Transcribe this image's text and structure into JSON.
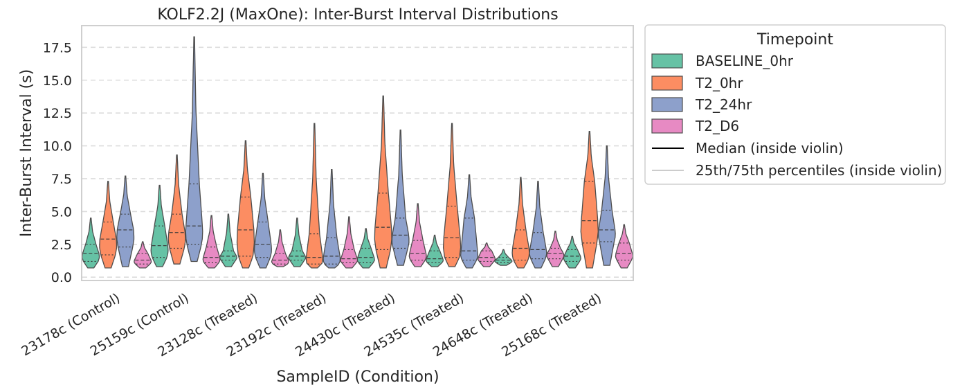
{
  "chart_data": {
    "type": "violin",
    "title": "KOLF2.2J (MaxOne): Inter-Burst Interval Distributions",
    "xlabel": "SampleID (Condition)",
    "ylabel": "Inter-Burst Interval (s)",
    "ylim": [
      -0.2,
      19.1
    ],
    "yticks": [
      "0.0",
      "2.5",
      "5.0",
      "7.5",
      "10.0",
      "12.5",
      "15.0",
      "17.5"
    ],
    "grid": "horizontal dashed",
    "legend_position": "outside right",
    "categories": [
      "23178c (Control)",
      "25159c (Control)",
      "23128c (Treated)",
      "23192c (Treated)",
      "24430c (Treated)",
      "24535c (Treated)",
      "24648c (Treated)",
      "25168c (Treated)"
    ],
    "legend": {
      "title": "Timepoint",
      "entries": [
        "BASELINE_0hr",
        "T2_0hr",
        "T2_24hr",
        "T2_D6",
        "Median (inside violin)",
        "25th/75th percentiles (inside violin)"
      ]
    },
    "series": [
      {
        "name": "BASELINE_0hr",
        "color": "#66c2a5",
        "stats": [
          {
            "min": 0.7,
            "q1": 1.2,
            "median": 1.8,
            "q3": 2.5,
            "max": 4.5
          },
          {
            "min": 0.8,
            "q1": 1.5,
            "median": 2.4,
            "q3": 3.9,
            "max": 7.0
          },
          {
            "min": 0.8,
            "q1": 1.3,
            "median": 1.6,
            "q3": 2.0,
            "max": 4.8
          },
          {
            "min": 0.8,
            "q1": 1.3,
            "median": 1.6,
            "q3": 2.0,
            "max": 4.5
          },
          {
            "min": 0.7,
            "q1": 1.1,
            "median": 1.5,
            "q3": 2.2,
            "max": 3.7
          },
          {
            "min": 0.8,
            "q1": 1.1,
            "median": 1.4,
            "q3": 2.0,
            "max": 3.2
          },
          {
            "min": 0.9,
            "q1": 1.1,
            "median": 1.3,
            "q3": 1.5,
            "max": 2.1
          },
          {
            "min": 0.7,
            "q1": 1.2,
            "median": 1.6,
            "q3": 2.1,
            "max": 3.1
          }
        ]
      },
      {
        "name": "T2_0hr",
        "color": "#fc8d62",
        "stats": [
          {
            "min": 0.7,
            "q1": 1.7,
            "median": 2.9,
            "q3": 4.2,
            "max": 7.3
          },
          {
            "min": 1.0,
            "q1": 2.2,
            "median": 3.4,
            "q3": 4.8,
            "max": 9.3
          },
          {
            "min": 0.7,
            "q1": 1.6,
            "median": 3.6,
            "q3": 6.1,
            "max": 10.4
          },
          {
            "min": 0.7,
            "q1": 1.0,
            "median": 1.5,
            "q3": 3.3,
            "max": 11.7
          },
          {
            "min": 0.7,
            "q1": 2.1,
            "median": 3.8,
            "q3": 6.4,
            "max": 13.8
          },
          {
            "min": 0.8,
            "q1": 1.5,
            "median": 3.0,
            "q3": 5.4,
            "max": 11.7
          },
          {
            "min": 0.7,
            "q1": 1.3,
            "median": 2.2,
            "q3": 3.6,
            "max": 7.6
          },
          {
            "min": 0.7,
            "q1": 2.6,
            "median": 4.3,
            "q3": 7.3,
            "max": 11.1
          }
        ]
      },
      {
        "name": "T2_24hr",
        "color": "#8da0cb",
        "stats": [
          {
            "min": 0.8,
            "q1": 2.3,
            "median": 3.6,
            "q3": 4.8,
            "max": 7.7
          },
          {
            "min": 1.2,
            "q1": 2.5,
            "median": 3.9,
            "q3": 7.1,
            "max": 18.3
          },
          {
            "min": 0.7,
            "q1": 1.5,
            "median": 2.5,
            "q3": 4.2,
            "max": 7.9
          },
          {
            "min": 0.7,
            "q1": 1.0,
            "median": 1.6,
            "q3": 3.0,
            "max": 8.2
          },
          {
            "min": 0.9,
            "q1": 2.2,
            "median": 3.2,
            "q3": 4.5,
            "max": 11.2
          },
          {
            "min": 0.7,
            "q1": 1.3,
            "median": 2.0,
            "q3": 4.5,
            "max": 7.8
          },
          {
            "min": 0.7,
            "q1": 1.4,
            "median": 2.1,
            "q3": 3.4,
            "max": 7.3
          },
          {
            "min": 0.9,
            "q1": 2.7,
            "median": 3.6,
            "q3": 5.1,
            "max": 10.0
          }
        ]
      },
      {
        "name": "T2_D6",
        "color": "#e78ac3",
        "stats": [
          {
            "min": 0.7,
            "q1": 1.0,
            "median": 1.3,
            "q3": 1.8,
            "max": 2.7
          },
          {
            "min": 0.7,
            "q1": 1.1,
            "median": 1.5,
            "q3": 2.3,
            "max": 4.7
          },
          {
            "min": 0.8,
            "q1": 1.0,
            "median": 1.3,
            "q3": 1.8,
            "max": 3.6
          },
          {
            "min": 0.7,
            "q1": 1.1,
            "median": 1.4,
            "q3": 2.1,
            "max": 4.6
          },
          {
            "min": 0.8,
            "q1": 1.3,
            "median": 1.8,
            "q3": 2.8,
            "max": 5.6
          },
          {
            "min": 0.8,
            "q1": 1.2,
            "median": 1.5,
            "q3": 2.0,
            "max": 2.6
          },
          {
            "min": 0.8,
            "q1": 1.4,
            "median": 1.8,
            "q3": 2.2,
            "max": 3.5
          },
          {
            "min": 0.7,
            "q1": 1.3,
            "median": 1.8,
            "q3": 2.6,
            "max": 4.0
          }
        ]
      }
    ]
  }
}
